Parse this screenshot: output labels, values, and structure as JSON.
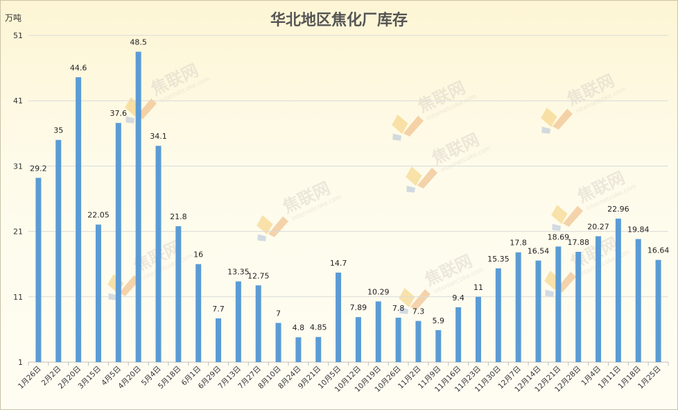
{
  "unit_label": "万吨",
  "watermark": {
    "text": "焦联网",
    "url": "internetcoke.com",
    "colors": [
      "#f2c45a",
      "#9fb4d6",
      "#e9a25c"
    ]
  },
  "colors": {
    "bar": "#5b9bd5",
    "grid": "#d9d9d9",
    "axis": "#bfbfbf"
  },
  "chart_data": {
    "type": "bar",
    "title": "华北地区焦化厂库存",
    "ylabel": "万吨",
    "ylim": [
      1,
      51
    ],
    "yticks": [
      1,
      11,
      21,
      31,
      41,
      51
    ],
    "grid": true,
    "categories": [
      "1月26日",
      "2月2日",
      "2月20日",
      "3月15日",
      "4月5日",
      "4月20日",
      "5月4日",
      "5月18日",
      "6月1日",
      "6月29日",
      "7月13日",
      "7月27日",
      "8月10日",
      "8月24日",
      "9月21日",
      "10月5日",
      "10月12日",
      "10月19日",
      "10月26日",
      "11月2日",
      "11月9日",
      "11月16日",
      "11月23日",
      "11月30日",
      "12月7日",
      "12月14日",
      "12月21日",
      "12月28日",
      "1月4日",
      "1月11日",
      "1月18日",
      "1月25日"
    ],
    "values": [
      29.2,
      35,
      44.6,
      22.05,
      37.6,
      48.5,
      34.1,
      21.8,
      16,
      7.7,
      13.35,
      12.75,
      7,
      4.8,
      4.85,
      14.7,
      7.89,
      10.29,
      7.8,
      7.3,
      5.9,
      9.4,
      11,
      15.35,
      17.8,
      16.54,
      18.69,
      17.88,
      20.27,
      22.96,
      19.84,
      16.64
    ],
    "data_labels": [
      "29.2",
      "35",
      "44.6",
      "22.05",
      "37.6",
      "48.5",
      "34.1",
      "21.8",
      "16",
      "7.7",
      "13.35",
      "12.75",
      "7",
      "4.8",
      "4.85",
      "14.7",
      "7.89",
      "10.29",
      "7.8",
      "7.3",
      "5.9",
      "9.4",
      "11",
      "15.35",
      "17.8",
      "16.54",
      "18.69",
      "17.88",
      "20.27",
      "22.96",
      "19.84",
      "16.64"
    ]
  }
}
